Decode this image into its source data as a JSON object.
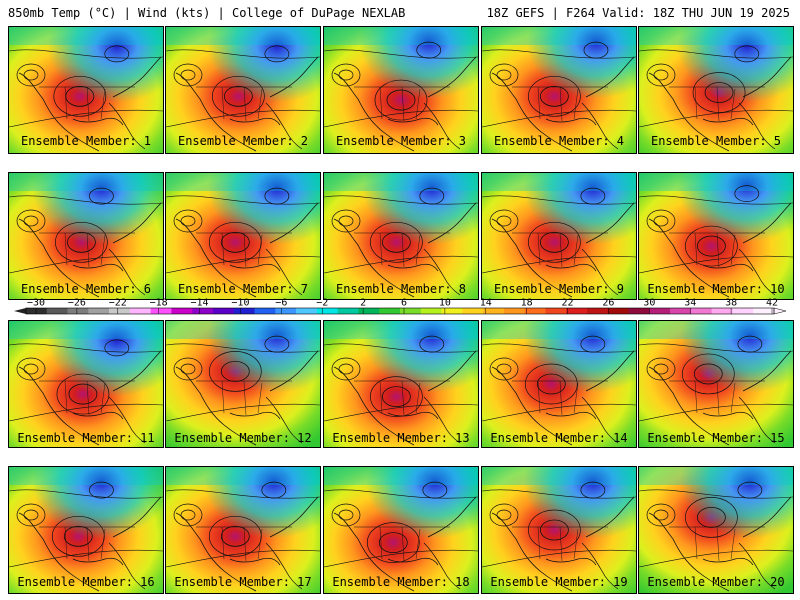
{
  "header": {
    "left": "850mb Temp (°C) | Wind (kts) | College of DuPage NEXLAB",
    "right": "18Z GEFS | F264 Valid: 18Z THU JUN 19 2025"
  },
  "caption_prefix": "Ensemble Member:",
  "members": [
    {
      "n": "1",
      "warm_x": 0.46,
      "warm_y": 0.55,
      "cold_x": 0.7,
      "cold_y": 0.15
    },
    {
      "n": "2",
      "warm_x": 0.47,
      "warm_y": 0.55,
      "cold_x": 0.72,
      "cold_y": 0.15
    },
    {
      "n": "3",
      "warm_x": 0.5,
      "warm_y": 0.58,
      "cold_x": 0.68,
      "cold_y": 0.12
    },
    {
      "n": "4",
      "warm_x": 0.47,
      "warm_y": 0.55,
      "cold_x": 0.74,
      "cold_y": 0.12
    },
    {
      "n": "5",
      "warm_x": 0.52,
      "warm_y": 0.52,
      "cold_x": 0.7,
      "cold_y": 0.15
    },
    {
      "n": "6",
      "warm_x": 0.47,
      "warm_y": 0.55,
      "cold_x": 0.6,
      "cold_y": 0.12
    },
    {
      "n": "7",
      "warm_x": 0.45,
      "warm_y": 0.55,
      "cold_x": 0.72,
      "cold_y": 0.12
    },
    {
      "n": "8",
      "warm_x": 0.47,
      "warm_y": 0.55,
      "cold_x": 0.7,
      "cold_y": 0.12
    },
    {
      "n": "9",
      "warm_x": 0.47,
      "warm_y": 0.55,
      "cold_x": 0.72,
      "cold_y": 0.12
    },
    {
      "n": "10",
      "warm_x": 0.47,
      "warm_y": 0.58,
      "cold_x": 0.7,
      "cold_y": 0.1
    },
    {
      "n": "11",
      "warm_x": 0.48,
      "warm_y": 0.58,
      "cold_x": 0.7,
      "cold_y": 0.15
    },
    {
      "n": "12",
      "warm_x": 0.45,
      "warm_y": 0.4,
      "cold_x": 0.72,
      "cold_y": 0.12
    },
    {
      "n": "13",
      "warm_x": 0.47,
      "warm_y": 0.6,
      "cold_x": 0.7,
      "cold_y": 0.12
    },
    {
      "n": "14",
      "warm_x": 0.45,
      "warm_y": 0.5,
      "cold_x": 0.72,
      "cold_y": 0.12
    },
    {
      "n": "15",
      "warm_x": 0.45,
      "warm_y": 0.42,
      "cold_x": 0.72,
      "cold_y": 0.12
    },
    {
      "n": "16",
      "warm_x": 0.45,
      "warm_y": 0.55,
      "cold_x": 0.6,
      "cold_y": 0.12
    },
    {
      "n": "17",
      "warm_x": 0.45,
      "warm_y": 0.55,
      "cold_x": 0.7,
      "cold_y": 0.12
    },
    {
      "n": "18",
      "warm_x": 0.45,
      "warm_y": 0.6,
      "cold_x": 0.72,
      "cold_y": 0.12
    },
    {
      "n": "19",
      "warm_x": 0.47,
      "warm_y": 0.5,
      "cold_x": 0.72,
      "cold_y": 0.12
    },
    {
      "n": "20",
      "warm_x": 0.47,
      "warm_y": 0.4,
      "cold_x": 0.72,
      "cold_y": 0.12
    }
  ],
  "legend": {
    "ticks": [
      "−30",
      "−26",
      "−22",
      "−18",
      "−14",
      "−10",
      "−6",
      "−2",
      "2",
      "6",
      "10",
      "14",
      "18",
      "22",
      "26",
      "30",
      "34",
      "38",
      "42"
    ],
    "colors": [
      "#2e2e2e",
      "#5a5a5a",
      "#7d7d7d",
      "#a0a0a0",
      "#c8c8c8",
      "#ffb4ff",
      "#ff50ff",
      "#c800c8",
      "#8c00c8",
      "#5a00c8",
      "#2020d0",
      "#2060f0",
      "#3c96ff",
      "#50c8ff",
      "#00e6e6",
      "#00c8a0",
      "#00b45a",
      "#32c832",
      "#78dc28",
      "#b4f01e",
      "#f0f01e",
      "#ffd21e",
      "#ffb41e",
      "#ff961e",
      "#ff6e1e",
      "#f0461e",
      "#dc1e1e",
      "#be1414",
      "#a00a0a",
      "#8c0a3c",
      "#b41e78",
      "#d746aa",
      "#f078d2",
      "#ffaaf0",
      "#ffd2ff",
      "#fff0ff"
    ]
  }
}
